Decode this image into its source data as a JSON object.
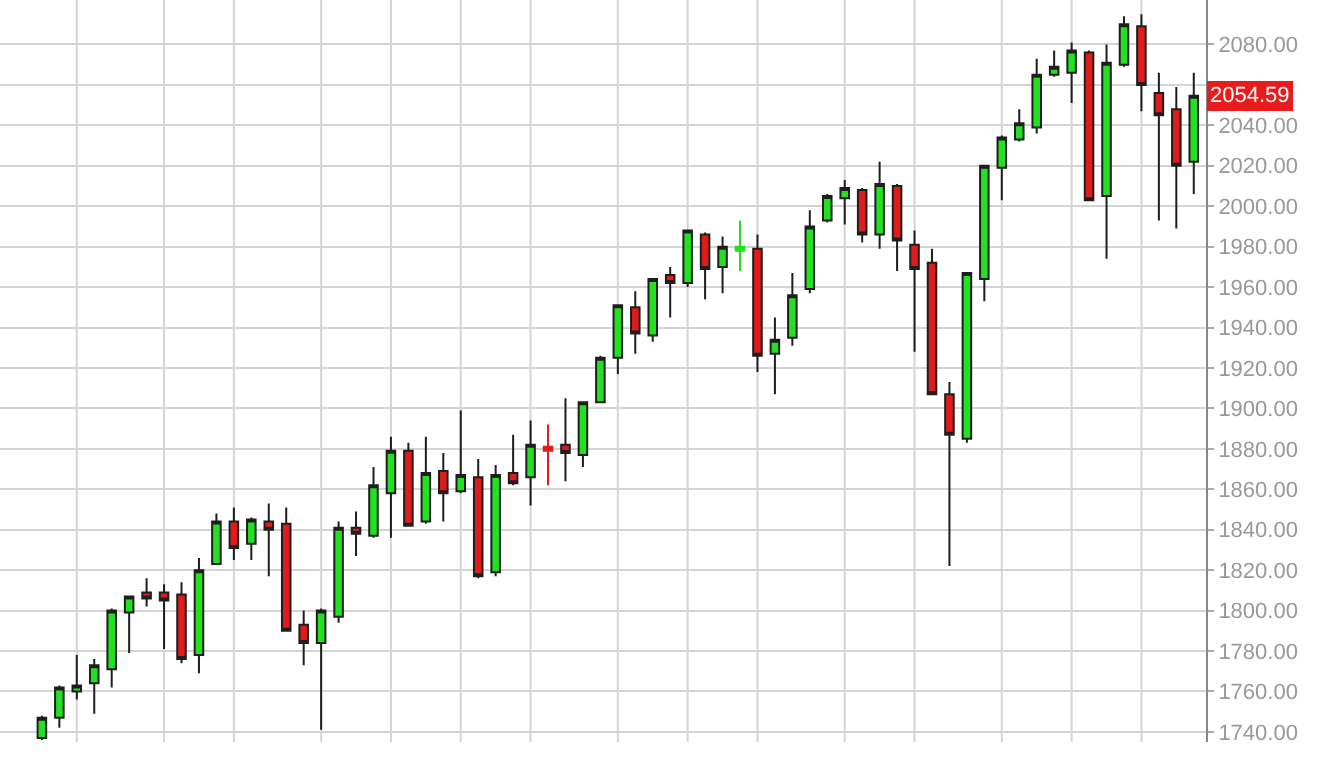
{
  "chart_data": {
    "type": "candlestick",
    "categories": [
      null,
      null,
      null,
      null,
      null,
      null,
      null,
      null,
      null,
      null,
      null,
      null,
      null,
      null,
      null,
      null,
      null,
      null,
      null,
      null,
      null,
      null,
      null,
      null,
      null,
      null,
      null,
      null,
      null,
      null,
      null,
      null,
      null,
      null,
      null,
      null,
      null,
      null,
      null,
      null,
      null,
      null,
      null,
      null,
      null,
      null,
      null,
      null,
      null,
      null,
      null,
      null,
      null,
      null,
      null,
      null,
      null,
      null,
      null,
      null,
      null,
      null,
      null,
      null,
      null,
      null,
      null
    ],
    "ohlc": [
      [
        1737,
        1748,
        1736,
        1747
      ],
      [
        1747,
        1763,
        1742,
        1762
      ],
      [
        1760,
        1778,
        1756,
        1763
      ],
      [
        1764,
        1776,
        1749,
        1773
      ],
      [
        1771,
        1801,
        1762,
        1800
      ],
      [
        1799,
        1807,
        1779,
        1807
      ],
      [
        1809,
        1816,
        1802,
        1806
      ],
      [
        1809,
        1813,
        1781,
        1805
      ],
      [
        1808,
        1814,
        1774,
        1776
      ],
      [
        1778,
        1826,
        1769,
        1820
      ],
      [
        1823,
        1848,
        1823,
        1844
      ],
      [
        1844,
        1851,
        1825,
        1831
      ],
      [
        1833,
        1846,
        1825,
        1845
      ],
      [
        1844,
        1853,
        1817,
        1840
      ],
      [
        1843,
        1851,
        1790,
        1790
      ],
      [
        1793,
        1800,
        1773,
        1784
      ],
      [
        1784,
        1801,
        1741,
        1800
      ],
      [
        1797,
        1844,
        1794,
        1841
      ],
      [
        1841,
        1849,
        1827,
        1838
      ],
      [
        1837,
        1871,
        1836,
        1862
      ],
      [
        1858,
        1886,
        1836,
        1879
      ],
      [
        1879,
        1883,
        1842,
        1842
      ],
      [
        1844,
        1886,
        1843,
        1868
      ],
      [
        1869,
        1878,
        1844,
        1858
      ],
      [
        1859,
        1899,
        1858,
        1867
      ],
      [
        1866,
        1875,
        1816,
        1817
      ],
      [
        1819,
        1872,
        1817,
        1867
      ],
      [
        1868,
        1887,
        1862,
        1863
      ],
      [
        1866,
        1894,
        1852,
        1882
      ],
      [
        1881,
        1892,
        1862,
        1879
      ],
      [
        1882,
        1905,
        1864,
        1878
      ],
      [
        1877,
        1903,
        1871,
        1903
      ],
      [
        1903,
        1926,
        1903,
        1925
      ],
      [
        1925,
        1951,
        1917,
        1951
      ],
      [
        1950,
        1958,
        1927,
        1937
      ],
      [
        1936,
        1964,
        1933,
        1964
      ],
      [
        1966,
        1970,
        1945,
        1962
      ],
      [
        1962,
        1988,
        1960,
        1988
      ],
      [
        1986,
        1987,
        1954,
        1969
      ],
      [
        1970,
        1985,
        1957,
        1980
      ],
      [
        1978,
        1993,
        1968,
        1980
      ],
      [
        1979,
        1986,
        1918,
        1926
      ],
      [
        1927,
        1945,
        1907,
        1934
      ],
      [
        1935,
        1967,
        1931,
        1956
      ],
      [
        1959,
        1998,
        1957,
        1990
      ],
      [
        1993,
        2006,
        1992,
        2005
      ],
      [
        2004,
        2013,
        1991,
        2009
      ],
      [
        2008,
        2009,
        1982,
        1986
      ],
      [
        1986,
        2022,
        1979,
        2011
      ],
      [
        2010,
        2011,
        1968,
        1983
      ],
      [
        1981,
        1988,
        1928,
        1969
      ],
      [
        1972,
        1979,
        1907,
        1907
      ],
      [
        1907,
        1913,
        1822,
        1887
      ],
      [
        1885,
        1967,
        1883,
        1967
      ],
      [
        1964,
        2020,
        1953,
        2020
      ],
      [
        2019,
        2035,
        2003,
        2034
      ],
      [
        2033,
        2048,
        2032,
        2041
      ],
      [
        2039,
        2073,
        2036,
        2065
      ],
      [
        2065,
        2077,
        2064,
        2069
      ],
      [
        2066,
        2081,
        2051,
        2077
      ],
      [
        2076,
        2077,
        2003,
        2003
      ],
      [
        2005,
        2080,
        1974,
        2071
      ],
      [
        2070,
        2094,
        2069,
        2090
      ],
      [
        2089,
        2095,
        2047,
        2060
      ],
      [
        2056,
        2066,
        1993,
        2045
      ],
      [
        2048,
        2059,
        1989,
        2020
      ],
      [
        2022,
        2066,
        2006,
        2054.59
      ]
    ],
    "colors": [
      "#22e022",
      "#22e022",
      "#22e022",
      "#22e022",
      "#22e022",
      "#22e022",
      "#e01b1b",
      "#e01b1b",
      "#e01b1b",
      "#22e022",
      "#22e022",
      "#e01b1b",
      "#22e022",
      "#e01b1b",
      "#e01b1b",
      "#e01b1b",
      "#22e022",
      "#22e022",
      "#e01b1b",
      "#22e022",
      "#22e022",
      "#e01b1b",
      "#22e022",
      "#e01b1b",
      "#22e022",
      "#e01b1b",
      "#22e022",
      "#e01b1b",
      "#22e022",
      "#e01b1b",
      "#e01b1b",
      "#22e022",
      "#22e022",
      "#22e022",
      "#e01b1b",
      "#22e022",
      "#e01b1b",
      "#22e022",
      "#e01b1b",
      "#22e022",
      "#22e022",
      "#e01b1b",
      "#22e022",
      "#22e022",
      "#22e022",
      "#22e022",
      "#22e022",
      "#e01b1b",
      "#22e022",
      "#e01b1b",
      "#e01b1b",
      "#e01b1b",
      "#e01b1b",
      "#22e022",
      "#22e022",
      "#22e022",
      "#22e022",
      "#22e022",
      "#22e022",
      "#22e022",
      "#e01b1b",
      "#22e022",
      "#22e022",
      "#e01b1b",
      "#e01b1b",
      "#e01b1b",
      "#22e022"
    ],
    "ylim": [
      1735,
      2102
    ],
    "yticks": [
      {
        "value": 1740,
        "label": "1740.00"
      },
      {
        "value": 1760,
        "label": "1760.00"
      },
      {
        "value": 1780,
        "label": "1780.00"
      },
      {
        "value": 1800,
        "label": "1800.00"
      },
      {
        "value": 1820,
        "label": "1820.00"
      },
      {
        "value": 1840,
        "label": "1840.00"
      },
      {
        "value": 1860,
        "label": "1860.00"
      },
      {
        "value": 1880,
        "label": "1880.00"
      },
      {
        "value": 1900,
        "label": "1900.00"
      },
      {
        "value": 1920,
        "label": "1920.00"
      },
      {
        "value": 1940,
        "label": "1940.00"
      },
      {
        "value": 1960,
        "label": "1960.00"
      },
      {
        "value": 1980,
        "label": "1980.00"
      },
      {
        "value": 2000,
        "label": "2000.00"
      },
      {
        "value": 2020,
        "label": "2020.00"
      },
      {
        "value": 2040,
        "label": "2040.00"
      },
      {
        "value": 2060,
        "label": null
      },
      {
        "value": 2080,
        "label": "2080.00"
      }
    ],
    "tick_labels": "y",
    "grid": true,
    "annotations": [
      {
        "text": "2054.59",
        "y": 2054.59
      }
    ]
  }
}
